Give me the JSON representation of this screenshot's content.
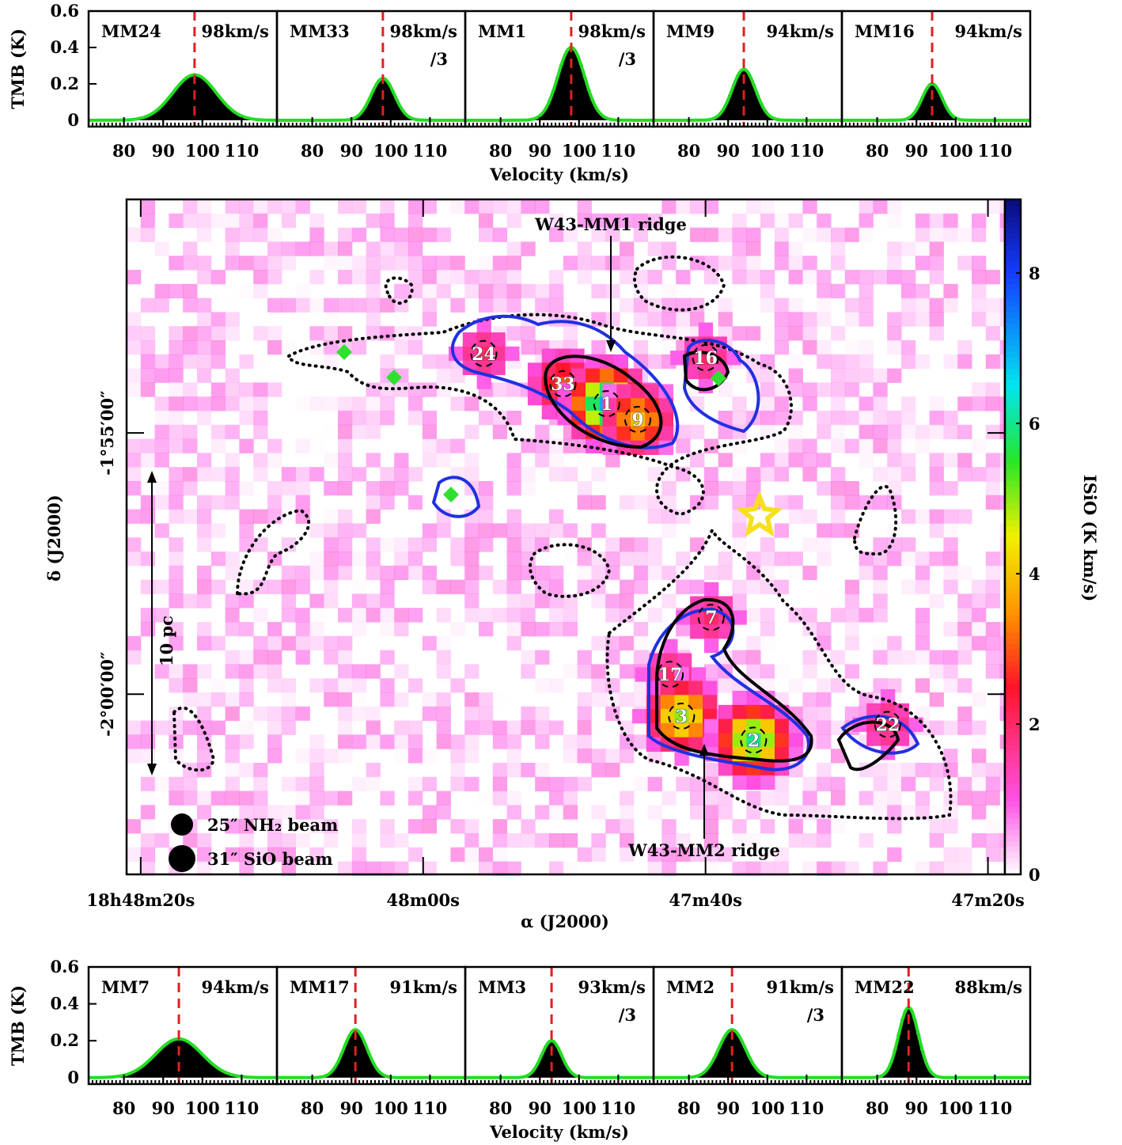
{
  "chart_data": [
    {
      "type": "spectra",
      "ylabel": "TMB (K)",
      "xlabel": "Velocity (km/s)",
      "xlim": [
        71,
        119
      ],
      "ylim": [
        -0.035,
        0.6
      ],
      "xticks": [
        80,
        90,
        100,
        110
      ],
      "yticks": [
        0,
        0.2,
        0.4,
        0.6
      ],
      "fit_color": "#22dd22",
      "line_color": "#e02020",
      "panels": [
        {
          "name": "MM24",
          "velocity": {
            "value": 98,
            "label": "98km/s"
          },
          "amplitude": 0.25,
          "fwhm": 13
        },
        {
          "name": "MM33",
          "velocity": {
            "value": 98,
            "label": "98km/s"
          },
          "note": "/3",
          "amplitude": 0.23,
          "fwhm": 7
        },
        {
          "name": "MM1",
          "velocity": {
            "value": 98,
            "label": "98km/s"
          },
          "note": "/3",
          "amplitude": 0.4,
          "fwhm": 8
        },
        {
          "name": "MM9",
          "velocity": {
            "value": 94,
            "label": "94km/s"
          },
          "amplitude": 0.28,
          "fwhm": 7
        },
        {
          "name": "MM16",
          "velocity": {
            "value": 94,
            "label": "94km/s"
          },
          "amplitude": 0.2,
          "fwhm": 6
        }
      ]
    },
    {
      "type": "map",
      "xlabel": "α (J2000)",
      "ylabel": "δ (J2000)",
      "colorbar_label": "ISiO (K km/s)",
      "xlim": [
        81,
        18.8
      ],
      "ylim": [
        -3.45,
        9.47
      ],
      "clim": [
        0,
        8.98
      ],
      "xticks": [
        {
          "value": 80,
          "label": "18h48m20s"
        },
        {
          "value": 60,
          "label": "48m00s"
        },
        {
          "value": 40,
          "label": "47m40s"
        },
        {
          "value": 20,
          "label": "47m20s"
        }
      ],
      "yticks": [
        {
          "value": 5,
          "label": "-1°55′00″"
        },
        {
          "value": 0,
          "label": "-2°00′00″"
        }
      ],
      "cticks": [
        0,
        2,
        4,
        6,
        8
      ],
      "annotations": [
        "W43-MM1 ridge",
        "W43-MM2 ridge",
        "10 pc",
        "25″ NH₂ beam",
        "31″ SiO beam"
      ],
      "cores": [
        {
          "label": "24",
          "x": 55.7,
          "y": 6.52,
          "peak": 2
        },
        {
          "label": "33",
          "x": 50.1,
          "y": 5.94,
          "peak": 3
        },
        {
          "label": "1",
          "x": 47.0,
          "y": 5.56,
          "peak": 7
        },
        {
          "label": "9",
          "x": 44.8,
          "y": 5.26,
          "peak": 4
        },
        {
          "label": "16",
          "x": 40.0,
          "y": 6.44,
          "peak": 2
        },
        {
          "label": "7",
          "x": 39.6,
          "y": 1.47,
          "peak": 2
        },
        {
          "label": "17",
          "x": 42.5,
          "y": 0.38,
          "peak": 2
        },
        {
          "label": "3",
          "x": 41.7,
          "y": -0.42,
          "peak": 5
        },
        {
          "label": "2",
          "x": 36.6,
          "y": -0.88,
          "peak": 6
        },
        {
          "label": "22",
          "x": 27.1,
          "y": -0.58,
          "peak": 2
        }
      ]
    },
    {
      "type": "spectra",
      "ylabel": "TMB (K)",
      "xlabel": "Velocity (km/s)",
      "xlim": [
        71,
        119
      ],
      "ylim": [
        -0.035,
        0.6
      ],
      "xticks": [
        80,
        90,
        100,
        110
      ],
      "yticks": [
        0,
        0.2,
        0.4,
        0.6
      ],
      "fit_color": "#22dd22",
      "line_color": "#e02020",
      "panels": [
        {
          "name": "MM7",
          "velocity": {
            "value": 94,
            "label": "94km/s"
          },
          "amplitude": 0.21,
          "fwhm": 14
        },
        {
          "name": "MM17",
          "velocity": {
            "value": 91,
            "label": "91km/s"
          },
          "amplitude": 0.26,
          "fwhm": 7
        },
        {
          "name": "MM3",
          "velocity": {
            "value": 93,
            "label": "93km/s"
          },
          "note": "/3",
          "amplitude": 0.2,
          "fwhm": 6
        },
        {
          "name": "MM2",
          "velocity": {
            "value": 91,
            "label": "91km/s"
          },
          "note": "/3",
          "amplitude": 0.26,
          "fwhm": 8
        },
        {
          "name": "MM22",
          "velocity": {
            "value": 88,
            "label": "88km/s"
          },
          "amplitude": 0.38,
          "fwhm": 6
        }
      ]
    }
  ]
}
